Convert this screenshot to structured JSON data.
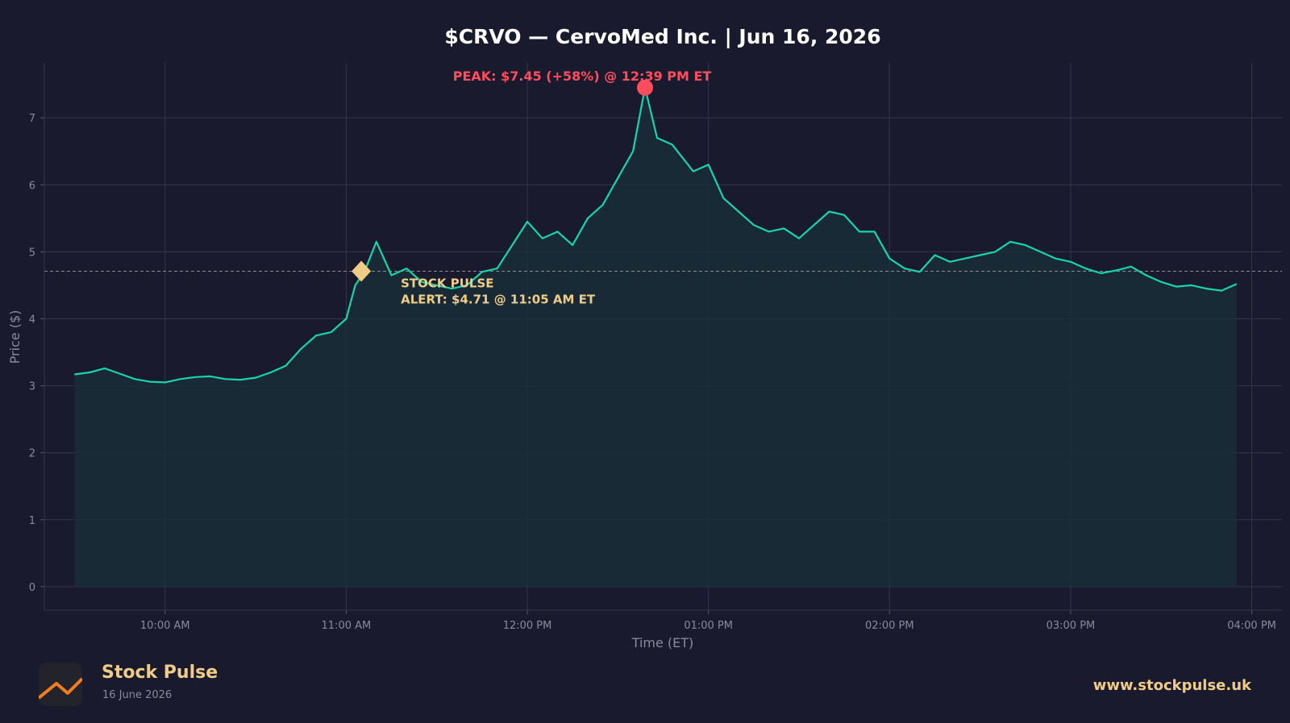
{
  "chart_data": {
    "type": "line",
    "title": "$CRVO — CervoMed Inc.  |  Jun 16, 2026",
    "xlabel": "Time (ET)",
    "ylabel": "Price ($)",
    "ylim": [
      -0.35,
      7.82
    ],
    "xlim": [
      "09:20",
      "16:10"
    ],
    "yticks": [
      0,
      1,
      2,
      3,
      4,
      5,
      6,
      7
    ],
    "xticks": [
      "10:00 AM",
      "11:00 AM",
      "12:00 PM",
      "01:00 PM",
      "02:00 PM",
      "03:00 PM",
      "04:00 PM"
    ],
    "grid": true,
    "colors": {
      "line": "#19d4a6",
      "fill": "#17303a",
      "peak": "#ff4d5e",
      "alert": "#f0cc86",
      "reference_line": "#8d8a87"
    },
    "series": [
      {
        "x": [
          "09:30",
          "09:35",
          "09:40",
          "09:45",
          "09:50",
          "09:55",
          "10:00",
          "10:05",
          "10:10",
          "10:15",
          "10:20",
          "10:25",
          "10:30",
          "10:35",
          "10:40",
          "10:45",
          "10:50",
          "10:55",
          "11:00",
          "11:03",
          "11:06",
          "11:10",
          "11:15",
          "11:20",
          "11:25",
          "11:30",
          "11:35",
          "11:40",
          "11:45",
          "11:50",
          "11:55",
          "12:00",
          "12:05",
          "12:10",
          "12:15",
          "12:20",
          "12:25",
          "12:30",
          "12:35",
          "12:39",
          "12:43",
          "12:48",
          "12:55",
          "13:00",
          "13:05",
          "13:10",
          "13:15",
          "13:20",
          "13:25",
          "13:30",
          "13:35",
          "13:40",
          "13:45",
          "13:50",
          "13:55",
          "14:00",
          "14:05",
          "14:10",
          "14:15",
          "14:20",
          "14:25",
          "14:30",
          "14:35",
          "14:40",
          "14:45",
          "14:50",
          "14:55",
          "15:00",
          "15:05",
          "15:10",
          "15:15",
          "15:20",
          "15:25",
          "15:30",
          "15:35",
          "15:40",
          "15:45",
          "15:50",
          "15:55"
        ],
        "y": [
          3.17,
          3.2,
          3.26,
          3.18,
          3.1,
          3.06,
          3.05,
          3.1,
          3.13,
          3.14,
          3.1,
          3.09,
          3.12,
          3.2,
          3.3,
          3.55,
          3.75,
          3.8,
          4.0,
          4.5,
          4.7,
          5.15,
          4.65,
          4.75,
          4.55,
          4.5,
          4.45,
          4.5,
          4.7,
          4.75,
          5.1,
          5.45,
          5.2,
          5.3,
          5.1,
          5.5,
          5.7,
          6.1,
          6.5,
          7.45,
          6.7,
          6.6,
          6.2,
          6.3,
          5.8,
          5.6,
          5.4,
          5.3,
          5.35,
          5.2,
          5.4,
          5.6,
          5.55,
          5.3,
          5.3,
          4.9,
          4.75,
          4.7,
          4.95,
          4.85,
          4.9,
          4.95,
          5.0,
          5.15,
          5.1,
          5.0,
          4.9,
          4.85,
          4.75,
          4.68,
          4.72,
          4.78,
          4.65,
          4.55,
          4.48,
          4.5,
          4.45,
          4.42,
          4.52
        ]
      }
    ],
    "annotations": {
      "peak_label": "PEAK: $7.45 (+58%) @ 12:39 PM ET",
      "peak": {
        "x": "12:39",
        "y": 7.45
      },
      "alert_label_line1": "STOCK PULSE",
      "alert_label_line2": "ALERT: $4.71 @ 11:05 AM ET",
      "alert": {
        "x": "11:05",
        "y": 4.71
      },
      "reference_level": 4.71
    }
  },
  "footer": {
    "brand": "Stock Pulse",
    "date": "16 June 2026",
    "url": "www.stockpulse.uk"
  }
}
